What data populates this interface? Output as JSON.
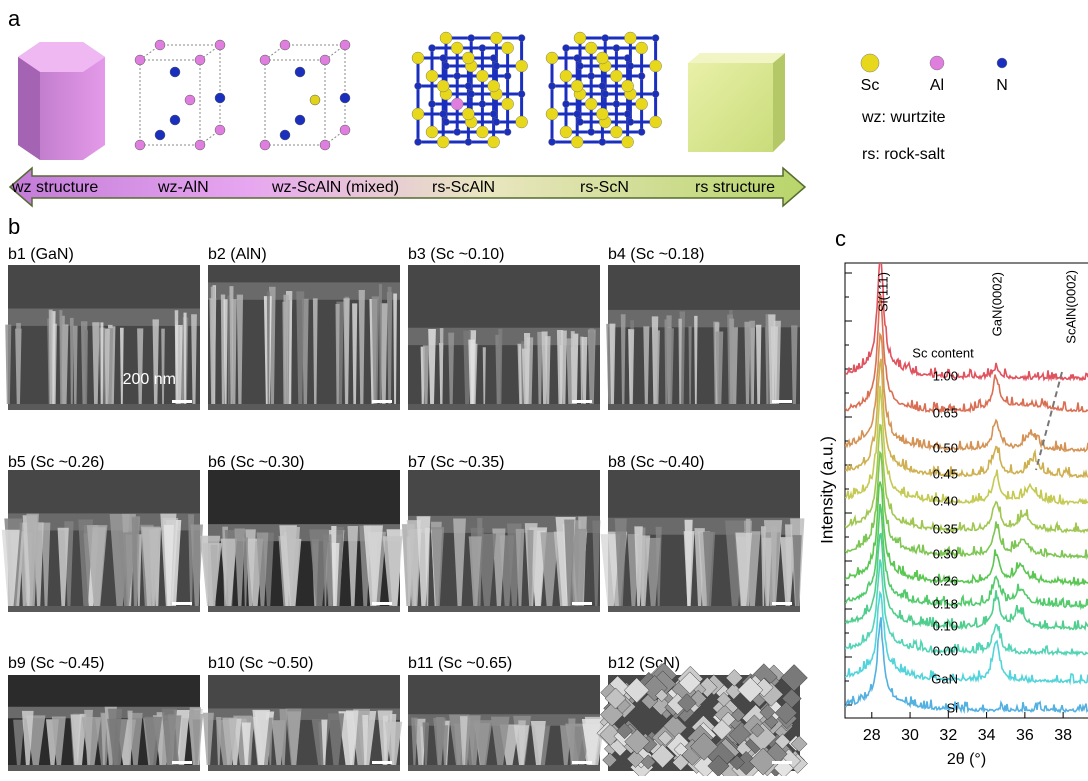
{
  "panel_a": {
    "label": "a",
    "arrow_labels": [
      "wz structure",
      "wz-AlN",
      "wz-ScAlN (mixed)",
      "rs-ScAlN",
      "rs-ScN",
      "rs structure"
    ],
    "legend": {
      "atoms": [
        "Sc",
        "Al",
        "N"
      ],
      "notes": [
        "wz: wurtzite",
        "rs: rock-salt"
      ]
    }
  },
  "panel_b": {
    "label": "b",
    "images": [
      "b1 (GaN)",
      "b2 (AlN)",
      "b3 (Sc ~0.10)",
      "b4 (Sc ~0.18)",
      "b5 (Sc ~0.26)",
      "b6 (Sc ~0.30)",
      "b7 (Sc ~0.35)",
      "b8 (Sc ~0.40)",
      "b9 (Sc ~0.45)",
      "b10 (Sc ~0.50)",
      "b11 (Sc ~0.65)",
      "b12 (ScN)"
    ],
    "scale_bar": "200 nm"
  },
  "panel_c": {
    "label": "c",
    "ylabel": "Intensity (a.u.)",
    "xlabel": "2θ (°)",
    "xlim": [
      26.6,
      39.3
    ],
    "xticks": [
      28,
      30,
      32,
      34,
      36,
      38
    ],
    "peak_labels": [
      "Si(111)",
      "GaN(0002)",
      "ScAlN(0002)"
    ],
    "legend_title": "Sc content",
    "samples": [
      "1.00",
      "0.65",
      "0.50",
      "0.45",
      "0.40",
      "0.35",
      "0.30",
      "0.26",
      "0.18",
      "0.10",
      "0.00",
      "GaN",
      "Si"
    ]
  }
}
